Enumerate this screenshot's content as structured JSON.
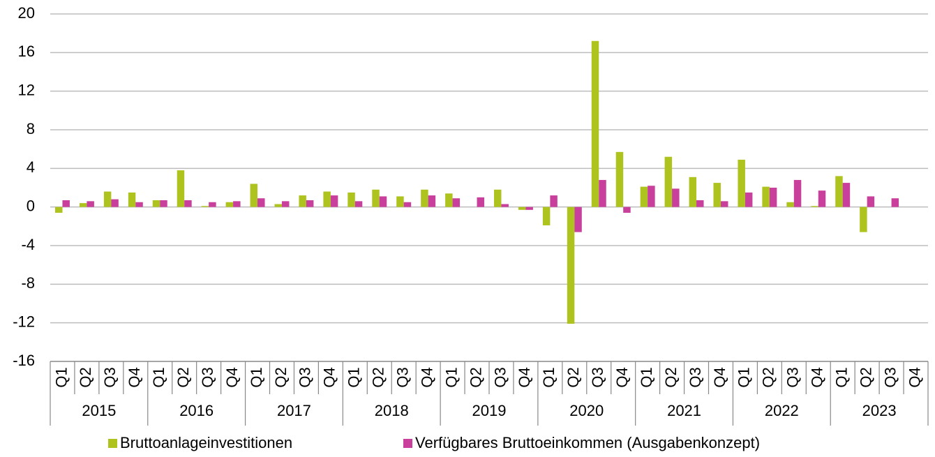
{
  "chart_data": {
    "type": "bar",
    "categories": [
      "Q1",
      "Q2",
      "Q3",
      "Q4",
      "Q1",
      "Q2",
      "Q3",
      "Q4",
      "Q1",
      "Q2",
      "Q3",
      "Q4",
      "Q1",
      "Q2",
      "Q3",
      "Q4",
      "Q1",
      "Q2",
      "Q3",
      "Q4",
      "Q1",
      "Q2",
      "Q3",
      "Q4",
      "Q1",
      "Q2",
      "Q3",
      "Q4",
      "Q1",
      "Q2",
      "Q3",
      "Q4",
      "Q1",
      "Q2",
      "Q3",
      "Q4"
    ],
    "years": [
      "2015",
      "2016",
      "2017",
      "2018",
      "2019",
      "2020",
      "2021",
      "2022",
      "2023"
    ],
    "series": [
      {
        "name": "Bruttoanlageinvestitionen",
        "color": "#afc31f",
        "values": [
          -0.6,
          0.4,
          1.6,
          1.5,
          0.7,
          3.8,
          0.1,
          0.5,
          2.4,
          0.3,
          1.2,
          1.6,
          1.5,
          1.8,
          1.1,
          1.8,
          1.4,
          0,
          1.8,
          -0.3,
          -1.9,
          -12.1,
          17.2,
          5.7,
          2.1,
          5.2,
          3.1,
          2.5,
          4.9,
          2.1,
          0.5,
          0.1,
          3.2,
          -2.6,
          null,
          null
        ]
      },
      {
        "name": "Verfügbares Bruttoeinkommen (Ausgabenkonzept)",
        "color": "#c8409b",
        "values": [
          0.7,
          0.6,
          0.8,
          0.5,
          0.7,
          0.7,
          0.5,
          0.6,
          0.9,
          0.6,
          0.7,
          1.2,
          0.6,
          1.1,
          0.5,
          1.2,
          0.9,
          1.0,
          0.3,
          -0.3,
          1.2,
          -2.6,
          2.8,
          -0.6,
          2.2,
          1.9,
          0.7,
          0.6,
          1.5,
          2.0,
          2.8,
          1.7,
          2.5,
          1.1,
          0.9,
          null
        ]
      }
    ],
    "ylim": [
      -16,
      20
    ],
    "yticks": [
      -16,
      -12,
      -8,
      -4,
      0,
      4,
      8,
      12,
      16,
      20
    ],
    "grid": true,
    "legend": "bottom"
  }
}
